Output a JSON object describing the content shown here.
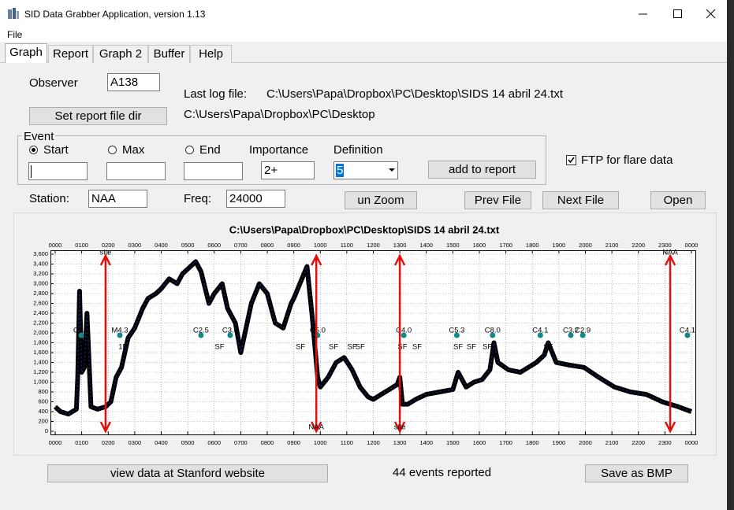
{
  "window": {
    "title": "SID Data Grabber Application, version 1.13",
    "menu": [
      "File"
    ],
    "tabs": [
      "Graph",
      "Report",
      "Graph 2",
      "Buffer",
      "Help"
    ]
  },
  "form": {
    "observer_label": "Observer",
    "observer": "A138",
    "last_log_label": "Last log file:",
    "last_log": "C:\\Users\\Papa\\Dropbox\\PC\\Desktop\\SIDS 14 abril 24.txt",
    "set_report_button": "Set report file dir",
    "report_dir": "C:\\Users\\Papa\\Dropbox\\PC\\Desktop",
    "event_legend": "Event",
    "radios": [
      "Start",
      "Max",
      "End"
    ],
    "importance_label": "Importance",
    "importance": "2+",
    "definition_label": "Definition",
    "definition": "5",
    "add_button": "add to report",
    "ftp_checkbox": "FTP for flare data",
    "station_label": "Station:",
    "station": "NAA",
    "freq_label": "Freq:",
    "freq": "24000",
    "buttons": [
      "un Zoom",
      "Prev File",
      "Next File",
      "Open"
    ]
  },
  "footer": {
    "stanford_button": "view data at Stanford website",
    "status": "44 events reported",
    "save_button": "Save as BMP"
  },
  "chart_data": {
    "type": "line",
    "title": "C:\\Users\\Papa\\Dropbox\\PC\\Desktop\\SIDS 14 abril 24.txt",
    "color": "#000000",
    "grid": true,
    "x": [
      0,
      0.2,
      0.5,
      0.8,
      0.85,
      0.92,
      1.0,
      1.1,
      1.2,
      1.35,
      1.6,
      1.9,
      2.1,
      2.3,
      2.5,
      2.75,
      3.0,
      3.3,
      3.5,
      3.8,
      4.0,
      4.3,
      4.6,
      4.8,
      5.0,
      5.3,
      5.5,
      5.8,
      6.0,
      6.3,
      6.5,
      6.8,
      7.0,
      7.4,
      7.7,
      8.0,
      8.3,
      8.6,
      8.9,
      9.0,
      9.5,
      9.7,
      9.9,
      10.0,
      10.3,
      10.6,
      10.9,
      11.2,
      11.5,
      11.8,
      12.0,
      12.3,
      12.6,
      12.9,
      13.0,
      13.1,
      13.3,
      13.6,
      14.0,
      14.5,
      15.0,
      15.2,
      15.5,
      15.8,
      16.1,
      16.4,
      16.55,
      16.7,
      17.1,
      17.55,
      18.15,
      18.45,
      18.6,
      18.9,
      19.35,
      19.95,
      20.5,
      21.1,
      21.7,
      22.3,
      22.9,
      23.5,
      24.0
    ],
    "values": [
      500,
      400,
      350,
      450,
      1100,
      2850,
      1200,
      1300,
      2400,
      500,
      450,
      500,
      600,
      1100,
      1300,
      1900,
      2100,
      2500,
      2700,
      2800,
      2900,
      3100,
      3000,
      3200,
      3300,
      3450,
      3250,
      2600,
      2800,
      3000,
      2500,
      2200,
      1600,
      2600,
      3000,
      2800,
      2200,
      2100,
      2600,
      2700,
      3350,
      2300,
      1100,
      900,
      1100,
      1400,
      1500,
      1250,
      900,
      700,
      650,
      750,
      850,
      950,
      1100,
      550,
      550,
      650,
      750,
      800,
      850,
      1200,
      900,
      1000,
      1050,
      1250,
      1800,
      1400,
      1250,
      1200,
      1400,
      1550,
      1800,
      1400,
      1350,
      1300,
      1100,
      900,
      800,
      750,
      600,
      500,
      400
    ],
    "xlim": [
      0,
      24
    ],
    "xticks": [
      {
        "value": 0,
        "label": "0000"
      },
      {
        "value": 1,
        "label": "0100"
      },
      {
        "value": 2,
        "label": "0200"
      },
      {
        "value": 3,
        "label": "0300"
      },
      {
        "value": 4,
        "label": "0400"
      },
      {
        "value": 5,
        "label": "0500"
      },
      {
        "value": 6,
        "label": "0600"
      },
      {
        "value": 7,
        "label": "0700"
      },
      {
        "value": 8,
        "label": "0800"
      },
      {
        "value": 9,
        "label": "0900"
      },
      {
        "value": 10,
        "label": "1000"
      },
      {
        "value": 11,
        "label": "1100"
      },
      {
        "value": 12,
        "label": "1200"
      },
      {
        "value": 13,
        "label": "1300"
      },
      {
        "value": 14,
        "label": "1400"
      },
      {
        "value": 15,
        "label": "1500"
      },
      {
        "value": 16,
        "label": "1600"
      },
      {
        "value": 17,
        "label": "1700"
      },
      {
        "value": 18,
        "label": "1800"
      },
      {
        "value": 19,
        "label": "1900"
      },
      {
        "value": 20,
        "label": "2000"
      },
      {
        "value": 21,
        "label": "2100"
      },
      {
        "value": 22,
        "label": "2200"
      },
      {
        "value": 23,
        "label": "2300"
      },
      {
        "value": 24,
        "label": "0000"
      }
    ],
    "ylim": [
      0,
      3600
    ],
    "yticks": [
      0,
      200,
      400,
      600,
      800,
      {
        "value": 1000,
        "label": "1,000"
      },
      {
        "value": 1200,
        "label": "1,200"
      },
      {
        "value": 1400,
        "label": "1,400"
      },
      {
        "value": 1600,
        "label": "1,600"
      },
      {
        "value": 1800,
        "label": "1,800"
      },
      {
        "value": 2000,
        "label": "2,000"
      },
      {
        "value": 2200,
        "label": "2,200"
      },
      {
        "value": 2400,
        "label": "2,400"
      },
      {
        "value": 2600,
        "label": "2,600"
      },
      {
        "value": 2800,
        "label": "2,800"
      },
      {
        "value": 3000,
        "label": "3,000"
      },
      {
        "value": 3200,
        "label": "3,200"
      },
      {
        "value": 3400,
        "label": "3,400"
      },
      {
        "value": 3600,
        "label": "3,600"
      }
    ],
    "arrows": [
      {
        "x": 1.9,
        "label": "site",
        "label_position": "top"
      },
      {
        "x": 9.85,
        "label": "NAA",
        "label_position": "bottom"
      },
      {
        "x": 13.0,
        "label": "site",
        "label_position": "bottom"
      },
      {
        "x": 23.2,
        "label": "NAA",
        "label_position": "top"
      }
    ],
    "flares": [
      {
        "x": 0.98,
        "label": "C2.9"
      },
      {
        "x": 2.44,
        "label": "M4.3"
      },
      {
        "x": 5.5,
        "label": "C2.5"
      },
      {
        "x": 6.6,
        "label": "C3.3"
      },
      {
        "x": 9.9,
        "label": "C5.0"
      },
      {
        "x": 13.15,
        "label": "C4.0"
      },
      {
        "x": 15.15,
        "label": "C5.3"
      },
      {
        "x": 16.5,
        "label": "C8.0"
      },
      {
        "x": 18.3,
        "label": "C4.1"
      },
      {
        "x": 19.45,
        "label": "C3.2"
      },
      {
        "x": 19.9,
        "label": "C2.9"
      },
      {
        "x": 23.85,
        "label": "C4.1"
      }
    ],
    "classes": [
      {
        "x": 2.55,
        "label": "1F"
      },
      {
        "x": 6.2,
        "label": "SF"
      },
      {
        "x": 9.25,
        "label": "SF"
      },
      {
        "x": 10.5,
        "label": "SF"
      },
      {
        "x": 11.2,
        "label": "SF"
      },
      {
        "x": 11.5,
        "label": "SF"
      },
      {
        "x": 13.1,
        "label": "SF"
      },
      {
        "x": 13.65,
        "label": "SF"
      },
      {
        "x": 15.2,
        "label": "SF"
      },
      {
        "x": 15.7,
        "label": "SF"
      },
      {
        "x": 16.3,
        "label": "SF"
      },
      {
        "x": 18.6,
        "label": "SF"
      }
    ]
  }
}
